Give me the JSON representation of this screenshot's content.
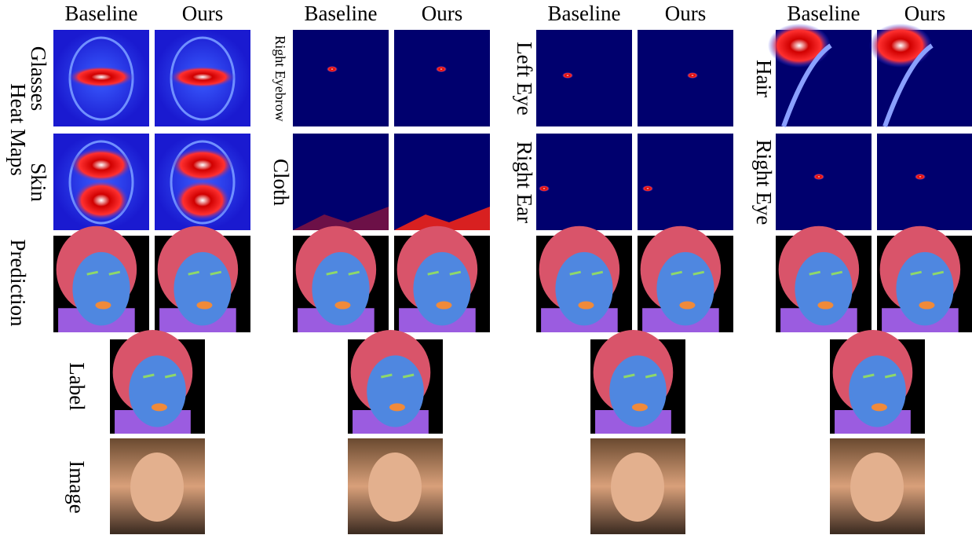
{
  "groups": [
    {
      "headers": [
        "Baseline",
        "Ours"
      ],
      "rows": [
        "Glasses",
        "Skin"
      ]
    },
    {
      "headers": [
        "Baseline",
        "Ours"
      ],
      "rows": [
        "Right Eyebrow",
        "Cloth"
      ]
    },
    {
      "headers": [
        "Baseline",
        "Ours"
      ],
      "rows": [
        "Left Eye",
        "Right Ear"
      ]
    },
    {
      "headers": [
        "Baseline",
        "Ours"
      ],
      "rows": [
        "Hair",
        "Right Eye"
      ]
    }
  ],
  "section_labels": {
    "heat_maps": "Heat Maps",
    "prediction": "Prediction",
    "label": "Label",
    "image": "Image"
  }
}
